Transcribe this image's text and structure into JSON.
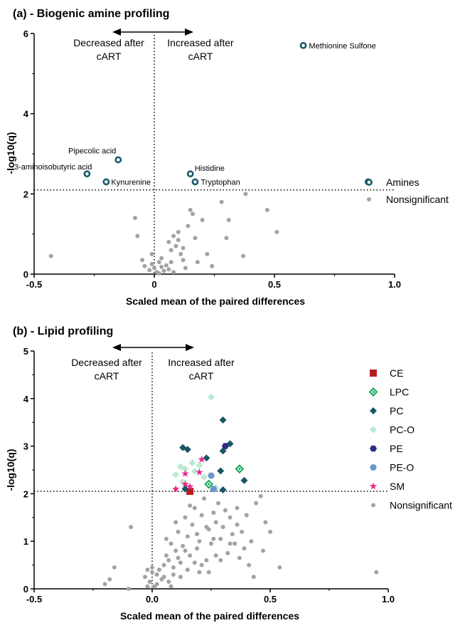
{
  "colors": {
    "amine": "#1c5b6b",
    "nonsig": "#a3a3a3",
    "CE": "#b51f24",
    "LPC": "#12a55a",
    "PC": "#175765",
    "PC-O": "#bde8d2",
    "PE": "#2b2d7e",
    "PE-O": "#6a96cf",
    "SM": "#e52b86"
  },
  "chart_data": [
    {
      "type": "scatter",
      "title": "(a) - Biogenic amine profiling",
      "xlabel": "Scaled mean of the paired differences",
      "ylabel": "-log10(q)",
      "xlim": [
        -0.5,
        1.0
      ],
      "ylim": [
        0,
        6
      ],
      "xticks": [
        "-0.5",
        "0",
        "0.5",
        "1.0"
      ],
      "yticks": [
        "0",
        "2",
        "4",
        "6"
      ],
      "threshold_y": 2.1,
      "vertical_line_x": 0,
      "arrow_label_left": [
        "Decreased after",
        "cART"
      ],
      "arrow_label_right": [
        "Increased after",
        "cART"
      ],
      "legend_position": "right",
      "legend": [
        "Amines",
        "Nonsignificant"
      ],
      "series": [
        {
          "name": "Amines",
          "marker": "open-circle",
          "points": [
            {
              "x": 0.62,
              "y": 5.7,
              "label": "Methionine Sulfone"
            },
            {
              "x": -0.15,
              "y": 2.85,
              "label": "Pipecolic acid"
            },
            {
              "x": -0.28,
              "y": 2.5,
              "label": "3-aminoisobutyric acid"
            },
            {
              "x": -0.2,
              "y": 2.3,
              "label": "Kynurenine"
            },
            {
              "x": 0.15,
              "y": 2.5,
              "label": "Histidine"
            },
            {
              "x": 0.17,
              "y": 2.3,
              "label": "Tryptophan"
            },
            {
              "x": 0.89,
              "y": 2.3,
              "label": ""
            }
          ]
        },
        {
          "name": "Nonsignificant",
          "marker": "dot",
          "points": [
            {
              "x": -0.43,
              "y": 0.45
            },
            {
              "x": -0.08,
              "y": 1.4
            },
            {
              "x": -0.07,
              "y": 0.95
            },
            {
              "x": -0.05,
              "y": 0.35
            },
            {
              "x": -0.04,
              "y": 0.2
            },
            {
              "x": -0.02,
              "y": 0.1
            },
            {
              "x": -0.01,
              "y": 0.25
            },
            {
              "x": 0.0,
              "y": 0.15
            },
            {
              "x": 0.01,
              "y": 0.05
            },
            {
              "x": 0.02,
              "y": 0.3
            },
            {
              "x": 0.03,
              "y": 0.18
            },
            {
              "x": 0.04,
              "y": 0.08
            },
            {
              "x": 0.05,
              "y": 0.22
            },
            {
              "x": 0.06,
              "y": 0.12
            },
            {
              "x": 0.07,
              "y": 0.3
            },
            {
              "x": 0.08,
              "y": 0.05
            },
            {
              "x": 0.06,
              "y": 0.8
            },
            {
              "x": 0.07,
              "y": 0.6
            },
            {
              "x": 0.08,
              "y": 0.95
            },
            {
              "x": 0.09,
              "y": 0.7
            },
            {
              "x": 0.1,
              "y": 1.05
            },
            {
              "x": 0.1,
              "y": 0.85
            },
            {
              "x": 0.11,
              "y": 0.5
            },
            {
              "x": 0.12,
              "y": 0.35
            },
            {
              "x": 0.12,
              "y": 0.65
            },
            {
              "x": 0.13,
              "y": 0.15
            },
            {
              "x": 0.14,
              "y": 1.2
            },
            {
              "x": 0.15,
              "y": 1.6
            },
            {
              "x": 0.16,
              "y": 1.5
            },
            {
              "x": 0.17,
              "y": 0.9
            },
            {
              "x": 0.18,
              "y": 0.3
            },
            {
              "x": 0.2,
              "y": 1.35
            },
            {
              "x": 0.22,
              "y": 0.5
            },
            {
              "x": 0.24,
              "y": 0.2
            },
            {
              "x": 0.28,
              "y": 1.8
            },
            {
              "x": 0.3,
              "y": 0.9
            },
            {
              "x": 0.31,
              "y": 1.35
            },
            {
              "x": 0.37,
              "y": 0.45
            },
            {
              "x": 0.38,
              "y": 2.0
            },
            {
              "x": 0.47,
              "y": 1.6
            },
            {
              "x": 0.51,
              "y": 1.05
            },
            {
              "x": 0.03,
              "y": 0.4
            },
            {
              "x": -0.01,
              "y": 0.5
            },
            {
              "x": 0.02,
              "y": 0.02
            }
          ]
        }
      ]
    },
    {
      "type": "scatter",
      "title": "(b) - Lipid profiling",
      "xlabel": "Scaled mean of the paired differences",
      "ylabel": "-log10(q)",
      "xlim": [
        -0.5,
        1.0
      ],
      "ylim": [
        0,
        5
      ],
      "xticks": [
        "-0.5",
        "0.0",
        "0.5",
        "1.0"
      ],
      "yticks": [
        "0",
        "1",
        "2",
        "3",
        "4",
        "5"
      ],
      "threshold_y": 2.05,
      "vertical_line_x": 0,
      "arrow_label_left": [
        "Decreased after",
        "cART"
      ],
      "arrow_label_right": [
        "Increased after",
        "cART"
      ],
      "legend_position": "right",
      "legend": [
        "CE",
        "LPC",
        "PC",
        "PC-O",
        "PE",
        "PE-O",
        "SM",
        "Nonsignificant"
      ],
      "series": [
        {
          "name": "CE",
          "marker": "square",
          "points": [
            {
              "x": 0.16,
              "y": 2.05
            }
          ]
        },
        {
          "name": "LPC",
          "marker": "open-diamond",
          "points": [
            {
              "x": 0.37,
              "y": 2.52
            },
            {
              "x": 0.24,
              "y": 2.2
            }
          ]
        },
        {
          "name": "PC",
          "marker": "diamond",
          "points": [
            {
              "x": 0.3,
              "y": 3.55
            },
            {
              "x": 0.33,
              "y": 3.05
            },
            {
              "x": 0.3,
              "y": 2.9
            },
            {
              "x": 0.13,
              "y": 2.97
            },
            {
              "x": 0.15,
              "y": 2.93
            },
            {
              "x": 0.23,
              "y": 2.75
            },
            {
              "x": 0.29,
              "y": 2.48
            },
            {
              "x": 0.39,
              "y": 2.28
            },
            {
              "x": 0.3,
              "y": 2.08
            },
            {
              "x": 0.14,
              "y": 2.1
            }
          ]
        },
        {
          "name": "PC-O",
          "marker": "diamond",
          "points": [
            {
              "x": 0.25,
              "y": 4.03
            },
            {
              "x": 0.12,
              "y": 2.57
            },
            {
              "x": 0.17,
              "y": 2.65
            },
            {
              "x": 0.2,
              "y": 2.6
            },
            {
              "x": 0.18,
              "y": 2.47
            },
            {
              "x": 0.14,
              "y": 2.52
            },
            {
              "x": 0.1,
              "y": 2.4
            },
            {
              "x": 0.13,
              "y": 2.25
            },
            {
              "x": 0.22,
              "y": 2.35
            },
            {
              "x": 0.27,
              "y": 2.12
            }
          ]
        },
        {
          "name": "PE",
          "marker": "hexagon",
          "points": [
            {
              "x": 0.31,
              "y": 3.0
            }
          ]
        },
        {
          "name": "PE-O",
          "marker": "hexagon",
          "points": [
            {
              "x": 0.25,
              "y": 2.38
            },
            {
              "x": 0.26,
              "y": 2.1
            }
          ]
        },
        {
          "name": "SM",
          "marker": "star",
          "points": [
            {
              "x": 0.21,
              "y": 2.72
            },
            {
              "x": 0.14,
              "y": 2.42
            },
            {
              "x": 0.2,
              "y": 2.45
            },
            {
              "x": 0.14,
              "y": 2.2
            },
            {
              "x": 0.1,
              "y": 2.1
            },
            {
              "x": 0.16,
              "y": 2.15
            }
          ]
        },
        {
          "name": "Nonsignificant",
          "marker": "dot",
          "points": [
            {
              "x": -0.2,
              "y": 0.1
            },
            {
              "x": -0.18,
              "y": 0.2
            },
            {
              "x": -0.16,
              "y": 0.45
            },
            {
              "x": -0.1,
              "y": 0.0
            },
            {
              "x": -0.09,
              "y": 1.3
            },
            {
              "x": -0.03,
              "y": 0.25
            },
            {
              "x": -0.02,
              "y": 0.4
            },
            {
              "x": -0.01,
              "y": 0.15
            },
            {
              "x": 0.0,
              "y": 0.35
            },
            {
              "x": 0.01,
              "y": 0.05
            },
            {
              "x": 0.02,
              "y": 0.3
            },
            {
              "x": 0.03,
              "y": 0.4
            },
            {
              "x": 0.04,
              "y": 0.2
            },
            {
              "x": 0.05,
              "y": 0.5
            },
            {
              "x": 0.06,
              "y": 0.7
            },
            {
              "x": 0.07,
              "y": 0.6
            },
            {
              "x": 0.08,
              "y": 0.95
            },
            {
              "x": 0.09,
              "y": 0.45
            },
            {
              "x": 0.1,
              "y": 0.8
            },
            {
              "x": 0.11,
              "y": 1.2
            },
            {
              "x": 0.12,
              "y": 0.55
            },
            {
              "x": 0.13,
              "y": 0.9
            },
            {
              "x": 0.14,
              "y": 1.5
            },
            {
              "x": 0.15,
              "y": 1.1
            },
            {
              "x": 0.16,
              "y": 0.7
            },
            {
              "x": 0.17,
              "y": 1.35
            },
            {
              "x": 0.18,
              "y": 1.7
            },
            {
              "x": 0.19,
              "y": 0.85
            },
            {
              "x": 0.2,
              "y": 1.0
            },
            {
              "x": 0.21,
              "y": 1.55
            },
            {
              "x": 0.22,
              "y": 1.9
            },
            {
              "x": 0.23,
              "y": 0.6
            },
            {
              "x": 0.24,
              "y": 1.25
            },
            {
              "x": 0.25,
              "y": 0.95
            },
            {
              "x": 0.26,
              "y": 1.6
            },
            {
              "x": 0.27,
              "y": 1.4
            },
            {
              "x": 0.28,
              "y": 1.8
            },
            {
              "x": 0.29,
              "y": 1.05
            },
            {
              "x": 0.3,
              "y": 1.3
            },
            {
              "x": 0.31,
              "y": 1.65
            },
            {
              "x": 0.32,
              "y": 0.75
            },
            {
              "x": 0.33,
              "y": 1.5
            },
            {
              "x": 0.34,
              "y": 1.15
            },
            {
              "x": 0.35,
              "y": 0.95
            },
            {
              "x": 0.36,
              "y": 1.35
            },
            {
              "x": 0.37,
              "y": 0.65
            },
            {
              "x": 0.38,
              "y": 1.2
            },
            {
              "x": 0.39,
              "y": 0.85
            },
            {
              "x": 0.4,
              "y": 1.55
            },
            {
              "x": 0.41,
              "y": 0.5
            },
            {
              "x": 0.42,
              "y": 1.0
            },
            {
              "x": 0.43,
              "y": 0.25
            },
            {
              "x": 0.44,
              "y": 1.8
            },
            {
              "x": 0.46,
              "y": 1.95
            },
            {
              "x": 0.47,
              "y": 0.8
            },
            {
              "x": 0.48,
              "y": 1.4
            },
            {
              "x": 0.5,
              "y": 1.2
            },
            {
              "x": 0.54,
              "y": 0.45
            },
            {
              "x": 0.95,
              "y": 0.35
            },
            {
              "x": 0.07,
              "y": 0.15
            },
            {
              "x": 0.09,
              "y": 0.3
            },
            {
              "x": 0.12,
              "y": 0.25
            },
            {
              "x": 0.15,
              "y": 0.4
            },
            {
              "x": 0.18,
              "y": 0.55
            },
            {
              "x": 0.21,
              "y": 0.5
            },
            {
              "x": 0.24,
              "y": 0.35
            },
            {
              "x": 0.27,
              "y": 0.7
            },
            {
              "x": 0.11,
              "y": 0.65
            },
            {
              "x": 0.14,
              "y": 0.8
            },
            {
              "x": 0.19,
              "y": 1.15
            },
            {
              "x": 0.23,
              "y": 1.3
            },
            {
              "x": 0.26,
              "y": 1.05
            },
            {
              "x": 0.06,
              "y": 1.05
            },
            {
              "x": 0.1,
              "y": 1.4
            },
            {
              "x": 0.16,
              "y": 1.75
            },
            {
              "x": 0.2,
              "y": 0.35
            },
            {
              "x": 0.29,
              "y": 0.6
            },
            {
              "x": 0.33,
              "y": 0.95
            },
            {
              "x": 0.36,
              "y": 1.7
            },
            {
              "x": 0.05,
              "y": 0.25
            },
            {
              "x": 0.08,
              "y": 0.05
            },
            {
              "x": 0.02,
              "y": 0.1
            },
            {
              "x": 0.0,
              "y": 0.45
            },
            {
              "x": -0.02,
              "y": 0.05
            }
          ]
        }
      ]
    }
  ]
}
